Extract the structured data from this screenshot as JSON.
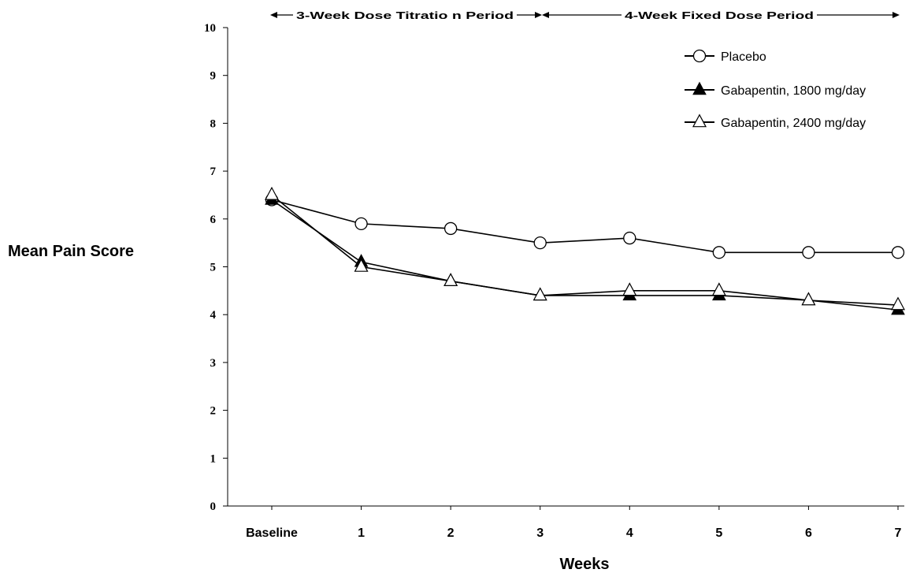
{
  "chart_data": {
    "type": "line",
    "xlabel": "Weeks",
    "ylabel": "Mean Pain Score",
    "categories": [
      "Baseline",
      "1",
      "2",
      "3",
      "4",
      "5",
      "6",
      "7"
    ],
    "ylim": [
      0,
      10
    ],
    "yticks": [
      "0",
      "1",
      "2",
      "3",
      "4",
      "5",
      "6",
      "7",
      "8",
      "9",
      "10"
    ],
    "grid": false,
    "legend_position": "top-right",
    "periods": [
      {
        "label": "3-Week Dose Titratio  n Period",
        "from": "Baseline",
        "to": "3"
      },
      {
        "label": "4-Week Fixed Dose Period",
        "from": "3",
        "to": "7"
      }
    ],
    "series": [
      {
        "name": "Placebo",
        "marker": "circle-open",
        "color": "#000000",
        "values": [
          6.4,
          5.9,
          5.8,
          5.5,
          5.6,
          5.3,
          5.3,
          5.3
        ]
      },
      {
        "name": "Gabapentin, 1800 mg/day",
        "marker": "triangle-filled",
        "color": "#000000",
        "values": [
          6.4,
          5.1,
          4.7,
          4.4,
          4.4,
          4.4,
          4.3,
          4.1
        ]
      },
      {
        "name": "Gabapentin, 2400 mg/day",
        "marker": "triangle-open",
        "color": "#000000",
        "values": [
          6.5,
          5.0,
          4.7,
          4.4,
          4.5,
          4.5,
          4.3,
          4.2
        ]
      }
    ]
  }
}
